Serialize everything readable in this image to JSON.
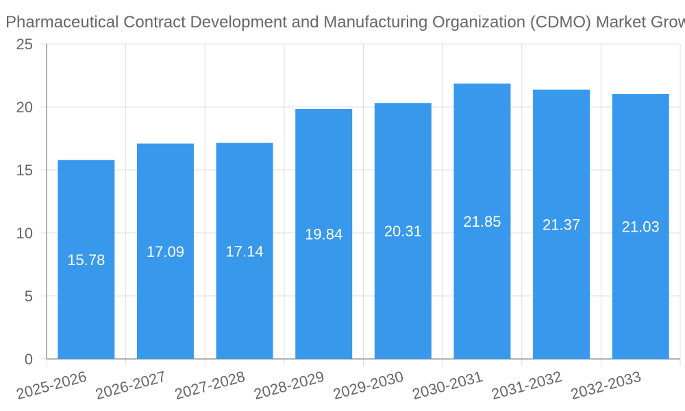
{
  "chart_data": {
    "type": "bar",
    "title": "Pharmaceutical Contract Development and Manufacturing Organization (CDMO) Market Growth",
    "xlabel": "",
    "ylabel": "",
    "categories": [
      "2025-2026",
      "2026-2027",
      "2027-2028",
      "2028-2029",
      "2029-2030",
      "2030-2031",
      "2031-2032",
      "2032-2033"
    ],
    "values": [
      15.78,
      17.09,
      17.14,
      19.84,
      20.31,
      21.85,
      21.37,
      21.03
    ],
    "data_labels": [
      "15.78",
      "17.09",
      "17.14",
      "19.84",
      "20.31",
      "21.85",
      "21.37",
      "21.03"
    ],
    "ylim": [
      0,
      25
    ],
    "yticks": [
      "0",
      "5",
      "10",
      "15",
      "20",
      "25"
    ],
    "grid": true,
    "legend": "none",
    "colors": {
      "bar": "#3899ec",
      "grid": "#dddddd",
      "axis": "#999999",
      "text": "#666666",
      "data_label": "#ffffff"
    }
  }
}
